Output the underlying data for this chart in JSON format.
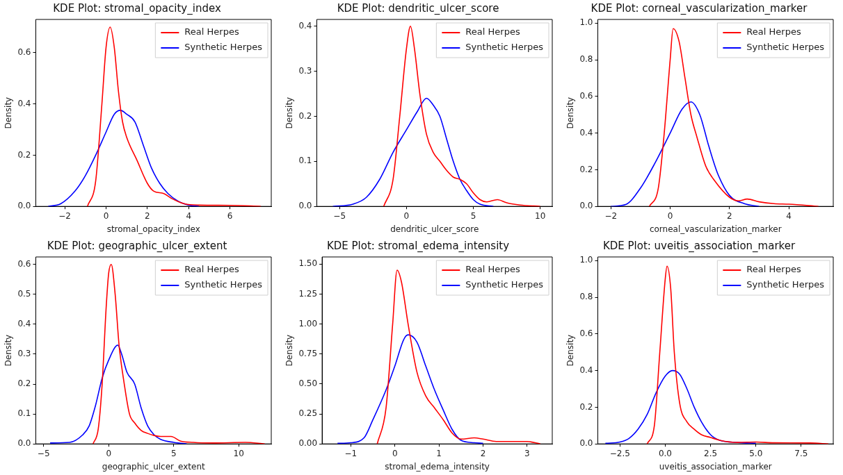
{
  "chart_data": [
    {
      "type": "line",
      "title": "KDE Plot: stromal_opacity_index",
      "xlabel": "stromal_opacity_index",
      "ylabel": "Density",
      "legend": "top right",
      "xlim": [
        -3.4,
        8.0
      ],
      "ylim": [
        0,
        0.73
      ],
      "xticks": [
        {
          "value": -2,
          "label": "−2"
        },
        {
          "value": 0,
          "label": "0"
        },
        {
          "value": 2,
          "label": "2"
        },
        {
          "value": 4,
          "label": "4"
        },
        {
          "value": 6,
          "label": "6"
        }
      ],
      "yticks": [
        {
          "value": 0,
          "label": "0.0"
        },
        {
          "value": 0.2,
          "label": "0.2"
        },
        {
          "value": 0.4,
          "label": "0.4"
        },
        {
          "value": 0.6,
          "label": "0.6"
        }
      ],
      "series": [
        {
          "name": "Real Herpes",
          "color": "#ff0000",
          "x": [
            -0.9,
            -0.5,
            -0.2,
            0,
            0.2,
            0.4,
            0.6,
            0.8,
            1.0,
            1.5,
            2.0,
            2.3,
            2.8,
            3.2,
            3.8,
            4.5,
            6,
            7.5
          ],
          "values": [
            0,
            0.1,
            0.4,
            0.62,
            0.7,
            0.62,
            0.45,
            0.33,
            0.27,
            0.18,
            0.09,
            0.06,
            0.05,
            0.03,
            0.01,
            0.005,
            0.004,
            0
          ]
        },
        {
          "name": "Synthetic Herpes",
          "color": "#0000ff",
          "x": [
            -2.8,
            -2.2,
            -1.5,
            -1,
            -0.5,
            0,
            0.4,
            0.7,
            1.0,
            1.4,
            1.8,
            2.2,
            2.6,
            3.0,
            3.5,
            4.0,
            4.5
          ],
          "values": [
            0,
            0.01,
            0.06,
            0.12,
            0.2,
            0.29,
            0.36,
            0.375,
            0.36,
            0.33,
            0.24,
            0.15,
            0.09,
            0.05,
            0.02,
            0.005,
            0
          ]
        }
      ]
    },
    {
      "type": "line",
      "title": "KDE Plot: dendritic_ulcer_score",
      "xlabel": "dendritic_ulcer_score",
      "ylabel": "Density",
      "legend": "top right",
      "xlim": [
        -6.7,
        10.9
      ],
      "ylim": [
        0,
        0.415
      ],
      "xticks": [
        {
          "value": -5,
          "label": "−5"
        },
        {
          "value": 0,
          "label": "0"
        },
        {
          "value": 5,
          "label": "5"
        },
        {
          "value": 10,
          "label": "10"
        }
      ],
      "yticks": [
        {
          "value": 0,
          "label": "0.0"
        },
        {
          "value": 0.1,
          "label": "0.1"
        },
        {
          "value": 0.2,
          "label": "0.2"
        },
        {
          "value": 0.3,
          "label": "0.3"
        },
        {
          "value": 0.4,
          "label": "0.4"
        }
      ],
      "series": [
        {
          "name": "Real Herpes",
          "color": "#ff0000",
          "x": [
            -1.7,
            -1,
            -0.5,
            0,
            0.3,
            0.6,
            1.0,
            1.5,
            2.0,
            2.5,
            3,
            3.5,
            4,
            4.5,
            5,
            5.5,
            6,
            6.8,
            7.5,
            8.5,
            10
          ],
          "values": [
            0,
            0.06,
            0.2,
            0.35,
            0.4,
            0.35,
            0.25,
            0.16,
            0.12,
            0.1,
            0.08,
            0.065,
            0.06,
            0.05,
            0.03,
            0.015,
            0.01,
            0.015,
            0.008,
            0.003,
            0
          ]
        },
        {
          "name": "Synthetic Herpes",
          "color": "#0000ff",
          "x": [
            -5.5,
            -4,
            -3,
            -2,
            -1,
            0,
            0.8,
            1.5,
            2,
            2.5,
            3,
            3.5,
            4,
            4.5,
            5,
            5.5,
            6.5
          ],
          "values": [
            0,
            0.005,
            0.02,
            0.06,
            0.12,
            0.17,
            0.21,
            0.24,
            0.225,
            0.2,
            0.15,
            0.1,
            0.06,
            0.035,
            0.015,
            0.005,
            0
          ]
        }
      ]
    },
    {
      "type": "line",
      "title": "KDE Plot: corneal_vascularization_marker",
      "xlabel": "corneal_vascularization_marker",
      "ylabel": "Density",
      "legend": "top right",
      "xlim": [
        -2.44,
        5.5
      ],
      "ylim": [
        0,
        1.02
      ],
      "xticks": [
        {
          "value": -2,
          "label": "−2"
        },
        {
          "value": 0,
          "label": "0"
        },
        {
          "value": 2,
          "label": "2"
        },
        {
          "value": 4,
          "label": "4"
        }
      ],
      "yticks": [
        {
          "value": 0,
          "label": "0.0"
        },
        {
          "value": 0.2,
          "label": "0.2"
        },
        {
          "value": 0.4,
          "label": "0.4"
        },
        {
          "value": 0.6,
          "label": "0.6"
        },
        {
          "value": 0.8,
          "label": "0.8"
        },
        {
          "value": 1,
          "label": "1.0"
        }
      ],
      "series": [
        {
          "name": "Real Herpes",
          "color": "#ff0000",
          "x": [
            -0.7,
            -0.4,
            -0.2,
            0,
            0.1,
            0.3,
            0.5,
            0.7,
            0.9,
            1.2,
            1.5,
            2.0,
            2.3,
            2.6,
            3.0,
            3.5,
            4,
            5
          ],
          "values": [
            0,
            0.1,
            0.4,
            0.8,
            0.97,
            0.9,
            0.7,
            0.5,
            0.38,
            0.22,
            0.14,
            0.05,
            0.03,
            0.04,
            0.025,
            0.015,
            0.012,
            0
          ]
        },
        {
          "name": "Synthetic Herpes",
          "color": "#0000ff",
          "x": [
            -2,
            -1.5,
            -1,
            -0.5,
            0,
            0.4,
            0.7,
            1.0,
            1.3,
            1.6,
            2.0,
            2.5,
            3
          ],
          "values": [
            0,
            0.01,
            0.1,
            0.24,
            0.4,
            0.53,
            0.57,
            0.5,
            0.33,
            0.18,
            0.06,
            0.015,
            0
          ]
        }
      ]
    },
    {
      "type": "line",
      "title": "KDE Plot: geographic_ulcer_extent",
      "xlabel": "geographic_ulcer_extent",
      "ylabel": "Density",
      "legend": "top right",
      "xlim": [
        -5.6,
        12.5
      ],
      "ylim": [
        0,
        0.625
      ],
      "xticks": [
        {
          "value": -5,
          "label": "−5"
        },
        {
          "value": 0,
          "label": "0"
        },
        {
          "value": 5,
          "label": "5"
        },
        {
          "value": 10,
          "label": "10"
        }
      ],
      "yticks": [
        {
          "value": 0,
          "label": "0.0"
        },
        {
          "value": 0.1,
          "label": "0.1"
        },
        {
          "value": 0.2,
          "label": "0.2"
        },
        {
          "value": 0.3,
          "label": "0.3"
        },
        {
          "value": 0.4,
          "label": "0.4"
        },
        {
          "value": 0.5,
          "label": "0.5"
        },
        {
          "value": 0.6,
          "label": "0.6"
        }
      ],
      "series": [
        {
          "name": "Real Herpes",
          "color": "#ff0000",
          "x": [
            -1.2,
            -0.8,
            -0.5,
            -0.2,
            0,
            0.2,
            0.5,
            0.8,
            1.2,
            1.6,
            2.0,
            2.5,
            3,
            3.5,
            4,
            4.8,
            5.5,
            6.5,
            8,
            10.5,
            12
          ],
          "values": [
            0,
            0.05,
            0.2,
            0.45,
            0.57,
            0.6,
            0.5,
            0.33,
            0.2,
            0.1,
            0.07,
            0.045,
            0.035,
            0.028,
            0.025,
            0.025,
            0.01,
            0.005,
            0.003,
            0.005,
            0
          ]
        },
        {
          "name": "Synthetic Herpes",
          "color": "#0000ff",
          "x": [
            -4.5,
            -3,
            -2,
            -1.5,
            -1,
            -0.5,
            0,
            0.7,
            1.0,
            1.4,
            2.0,
            2.5,
            3.0,
            3.5,
            4,
            5,
            6
          ],
          "values": [
            0.003,
            0.005,
            0.03,
            0.06,
            0.13,
            0.22,
            0.28,
            0.33,
            0.3,
            0.24,
            0.2,
            0.12,
            0.06,
            0.03,
            0.015,
            0.005,
            0
          ]
        }
      ]
    },
    {
      "type": "line",
      "title": "KDE Plot: stromal_edema_intensity",
      "xlabel": "stromal_edema_intensity",
      "ylabel": "Density",
      "legend": "top right",
      "xlim": [
        -1.65,
        3.57
      ],
      "ylim": [
        0,
        1.56
      ],
      "xticks": [
        {
          "value": -1,
          "label": "−1"
        },
        {
          "value": 0,
          "label": "0"
        },
        {
          "value": 1,
          "label": "1"
        },
        {
          "value": 2,
          "label": "2"
        },
        {
          "value": 3,
          "label": "3"
        }
      ],
      "yticks": [
        {
          "value": 0,
          "label": "0.00"
        },
        {
          "value": 0.25,
          "label": "0.25"
        },
        {
          "value": 0.5,
          "label": "0.50"
        },
        {
          "value": 0.75,
          "label": "0.75"
        },
        {
          "value": 1,
          "label": "1.00"
        },
        {
          "value": 1.25,
          "label": "1.25"
        },
        {
          "value": 1.5,
          "label": "1.50"
        }
      ],
      "series": [
        {
          "name": "Real Herpes",
          "color": "#ff0000",
          "x": [
            -0.4,
            -0.2,
            -0.05,
            0.05,
            0.15,
            0.3,
            0.5,
            0.7,
            0.9,
            1.1,
            1.3,
            1.5,
            1.8,
            2.0,
            2.3,
            3,
            3.3
          ],
          "values": [
            0,
            0.3,
            1.0,
            1.45,
            1.35,
            1.0,
            0.6,
            0.4,
            0.3,
            0.2,
            0.09,
            0.04,
            0.05,
            0.04,
            0.02,
            0.02,
            0
          ]
        },
        {
          "name": "Synthetic Herpes",
          "color": "#0000ff",
          "x": [
            -1.3,
            -1,
            -0.7,
            -0.5,
            -0.2,
            0,
            0.2,
            0.3,
            0.5,
            0.7,
            0.9,
            1.1,
            1.3,
            1.5,
            1.8,
            2
          ],
          "values": [
            0.005,
            0.01,
            0.05,
            0.2,
            0.45,
            0.65,
            0.87,
            0.91,
            0.85,
            0.65,
            0.45,
            0.28,
            0.12,
            0.03,
            0.01,
            0.005
          ]
        }
      ]
    },
    {
      "type": "line",
      "title": "KDE Plot: uveitis_association_marker",
      "xlabel": "uveitis_association_marker",
      "ylabel": "Density",
      "legend": "top right",
      "xlim": [
        -3.72,
        9.27
      ],
      "ylim": [
        0,
        1.02
      ],
      "xticks": [
        {
          "value": -2.5,
          "label": "−2.5"
        },
        {
          "value": 0,
          "label": "0.0"
        },
        {
          "value": 2.5,
          "label": "2.5"
        },
        {
          "value": 5,
          "label": "5.0"
        },
        {
          "value": 7.5,
          "label": "7.5"
        }
      ],
      "yticks": [
        {
          "value": 0,
          "label": "0.0"
        },
        {
          "value": 0.2,
          "label": "0.2"
        },
        {
          "value": 0.4,
          "label": "0.4"
        },
        {
          "value": 0.6,
          "label": "0.6"
        },
        {
          "value": 0.8,
          "label": "0.8"
        },
        {
          "value": 1,
          "label": "1.0"
        }
      ],
      "series": [
        {
          "name": "Real Herpes",
          "color": "#ff0000",
          "x": [
            -1,
            -0.6,
            -0.3,
            0,
            0.1,
            0.3,
            0.5,
            0.8,
            1.2,
            1.6,
            2,
            2.5,
            3,
            4,
            5,
            6,
            8,
            9
          ],
          "values": [
            0,
            0.1,
            0.5,
            0.9,
            0.97,
            0.85,
            0.5,
            0.22,
            0.12,
            0.08,
            0.05,
            0.035,
            0.02,
            0.008,
            0.01,
            0.006,
            0.005,
            0
          ]
        },
        {
          "name": "Synthetic Herpes",
          "color": "#0000ff",
          "x": [
            -3.3,
            -2.5,
            -2,
            -1.5,
            -1,
            -0.5,
            0,
            0.4,
            0.8,
            1.2,
            1.6,
            2,
            2.5,
            3,
            4,
            5
          ],
          "values": [
            0.003,
            0.01,
            0.03,
            0.08,
            0.16,
            0.28,
            0.37,
            0.4,
            0.38,
            0.3,
            0.2,
            0.12,
            0.05,
            0.02,
            0.008,
            0.003
          ]
        }
      ]
    }
  ]
}
